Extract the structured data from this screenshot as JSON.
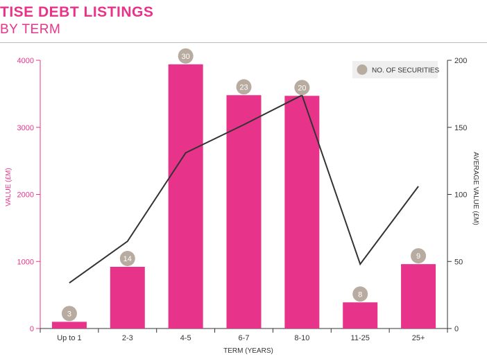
{
  "title": "TISE DEBT LISTINGS",
  "subtitle": "BY TERM",
  "colors": {
    "bar": "#e8338a",
    "line": "#333333",
    "badge": "#b8aca0",
    "left_axis": "#e8338a",
    "right_axis": "#333333",
    "legend_bg": "#efefef"
  },
  "chart_data": {
    "type": "bar",
    "xlabel": "TERM (YEARS)",
    "ylabel": "VALUE (£M)",
    "y2label": "AVERAGE VALUE (£M)",
    "categories": [
      "Up to 1",
      "2-3",
      "4-5",
      "6-7",
      "8-10",
      "11-25",
      "25+"
    ],
    "ylim": [
      0,
      4000
    ],
    "y2lim": [
      0,
      200
    ],
    "yticks": [
      "0",
      "1000",
      "2000",
      "3000",
      "4000"
    ],
    "y2ticks": [
      "0",
      "50",
      "100",
      "150",
      "200"
    ],
    "legend_position": "top-right",
    "grid": false,
    "series": [
      {
        "type": "bar",
        "axis": "left",
        "values": [
          100,
          920,
          3940,
          3480,
          3470,
          390,
          960
        ]
      },
      {
        "type": "line",
        "axis": "right",
        "values": [
          34,
          65,
          131,
          152,
          174,
          48,
          106
        ]
      }
    ],
    "bar_labels": {
      "name": "NO. OF SECURITIES",
      "values": [
        "3",
        "14",
        "30",
        "23",
        "20",
        "8",
        "9"
      ]
    }
  }
}
